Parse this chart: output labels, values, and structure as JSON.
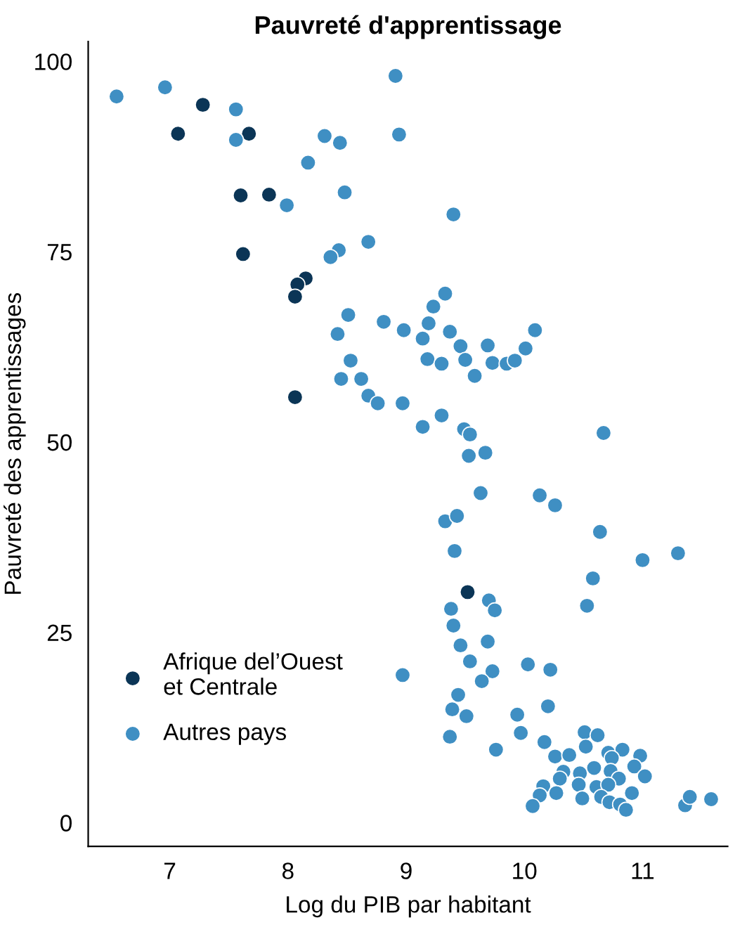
{
  "chart_data": {
    "type": "scatter",
    "title": "Pauvreté d'apprentissage",
    "xlabel": "Log du PIB par habitant",
    "ylabel": "Pauvreté des apprentissages",
    "xlim": [
      6.31,
      11.72
    ],
    "ylim": [
      -3.1,
      102.6
    ],
    "xticks": [
      7,
      8,
      9,
      10,
      11
    ],
    "yticks": [
      0,
      25,
      50,
      75,
      100
    ],
    "grid": false,
    "legend": "bottom left",
    "marker": "circle",
    "series": [
      {
        "name": "Afrique del’Ouest\net Centrale",
        "color": "#0b3556",
        "x": [
          7.28,
          7.07,
          7.67,
          7.6,
          7.84,
          7.62,
          8.15,
          8.08,
          8.06,
          8.06,
          9.52
        ],
        "values": [
          94.3,
          90.5,
          90.5,
          82.4,
          82.5,
          74.7,
          71.5,
          70.7,
          69.1,
          55.9,
          30.3
        ]
      },
      {
        "name": "Autres pays",
        "color": "#3f8fc3",
        "x": [
          6.55,
          6.96,
          7.56,
          7.56,
          8.31,
          8.44,
          8.91,
          8.94,
          8.17,
          8.48,
          7.99,
          8.68,
          8.43,
          8.36,
          8.51,
          8.81,
          8.98,
          8.42,
          8.53,
          8.45,
          8.62,
          8.68,
          8.76,
          8.97,
          9.4,
          9.33,
          9.23,
          9.19,
          9.14,
          9.37,
          9.46,
          9.69,
          10.09,
          10.01,
          9.18,
          9.3,
          9.5,
          9.73,
          9.85,
          9.92,
          9.58,
          9.14,
          9.3,
          9.49,
          9.54,
          9.53,
          9.67,
          10.67,
          9.63,
          10.13,
          10.26,
          9.33,
          9.43,
          10.64,
          9.41,
          11.0,
          11.3,
          10.58,
          10.53,
          9.38,
          9.7,
          9.75,
          9.4,
          9.46,
          9.69,
          9.54,
          9.73,
          9.64,
          8.97,
          10.03,
          10.22,
          9.44,
          9.39,
          9.51,
          9.37,
          9.94,
          10.2,
          9.97,
          9.76,
          10.17,
          10.51,
          10.62,
          10.52,
          10.26,
          10.38,
          10.71,
          10.83,
          10.98,
          10.74,
          10.93,
          10.59,
          10.47,
          10.73,
          11.02,
          10.33,
          10.3,
          10.8,
          10.46,
          10.61,
          10.71,
          10.16,
          10.27,
          10.13,
          10.07,
          10.49,
          10.65,
          10.72,
          10.81,
          10.86,
          10.91,
          11.36,
          11.4,
          11.58
        ],
        "values": [
          95.4,
          96.6,
          93.7,
          89.7,
          90.2,
          89.3,
          98.1,
          90.4,
          86.7,
          82.8,
          81.1,
          76.3,
          75.2,
          74.3,
          66.7,
          65.8,
          64.7,
          64.2,
          60.7,
          58.3,
          58.3,
          56.1,
          55.1,
          55.1,
          79.9,
          69.5,
          67.8,
          65.6,
          63.6,
          64.5,
          62.6,
          62.7,
          64.7,
          62.3,
          60.9,
          60.3,
          60.8,
          60.4,
          60.3,
          60.7,
          58.7,
          52.0,
          53.5,
          51.7,
          51.0,
          48.2,
          48.6,
          51.2,
          43.3,
          43.0,
          41.7,
          39.6,
          40.3,
          38.2,
          35.7,
          34.5,
          35.4,
          32.1,
          28.5,
          28.1,
          29.2,
          27.9,
          25.9,
          23.3,
          23.8,
          21.2,
          19.9,
          18.6,
          19.4,
          20.8,
          20.1,
          16.8,
          14.9,
          14.0,
          11.3,
          14.2,
          15.3,
          11.8,
          9.6,
          10.6,
          11.9,
          11.5,
          10.0,
          8.7,
          8.9,
          9.2,
          9.6,
          8.8,
          8.5,
          7.4,
          7.2,
          6.5,
          6.8,
          6.1,
          6.7,
          5.8,
          5.8,
          5.0,
          4.7,
          5.0,
          4.8,
          3.9,
          3.6,
          2.2,
          3.2,
          3.4,
          2.7,
          2.4,
          1.7,
          3.9,
          2.3,
          3.4,
          3.1
        ]
      }
    ]
  }
}
